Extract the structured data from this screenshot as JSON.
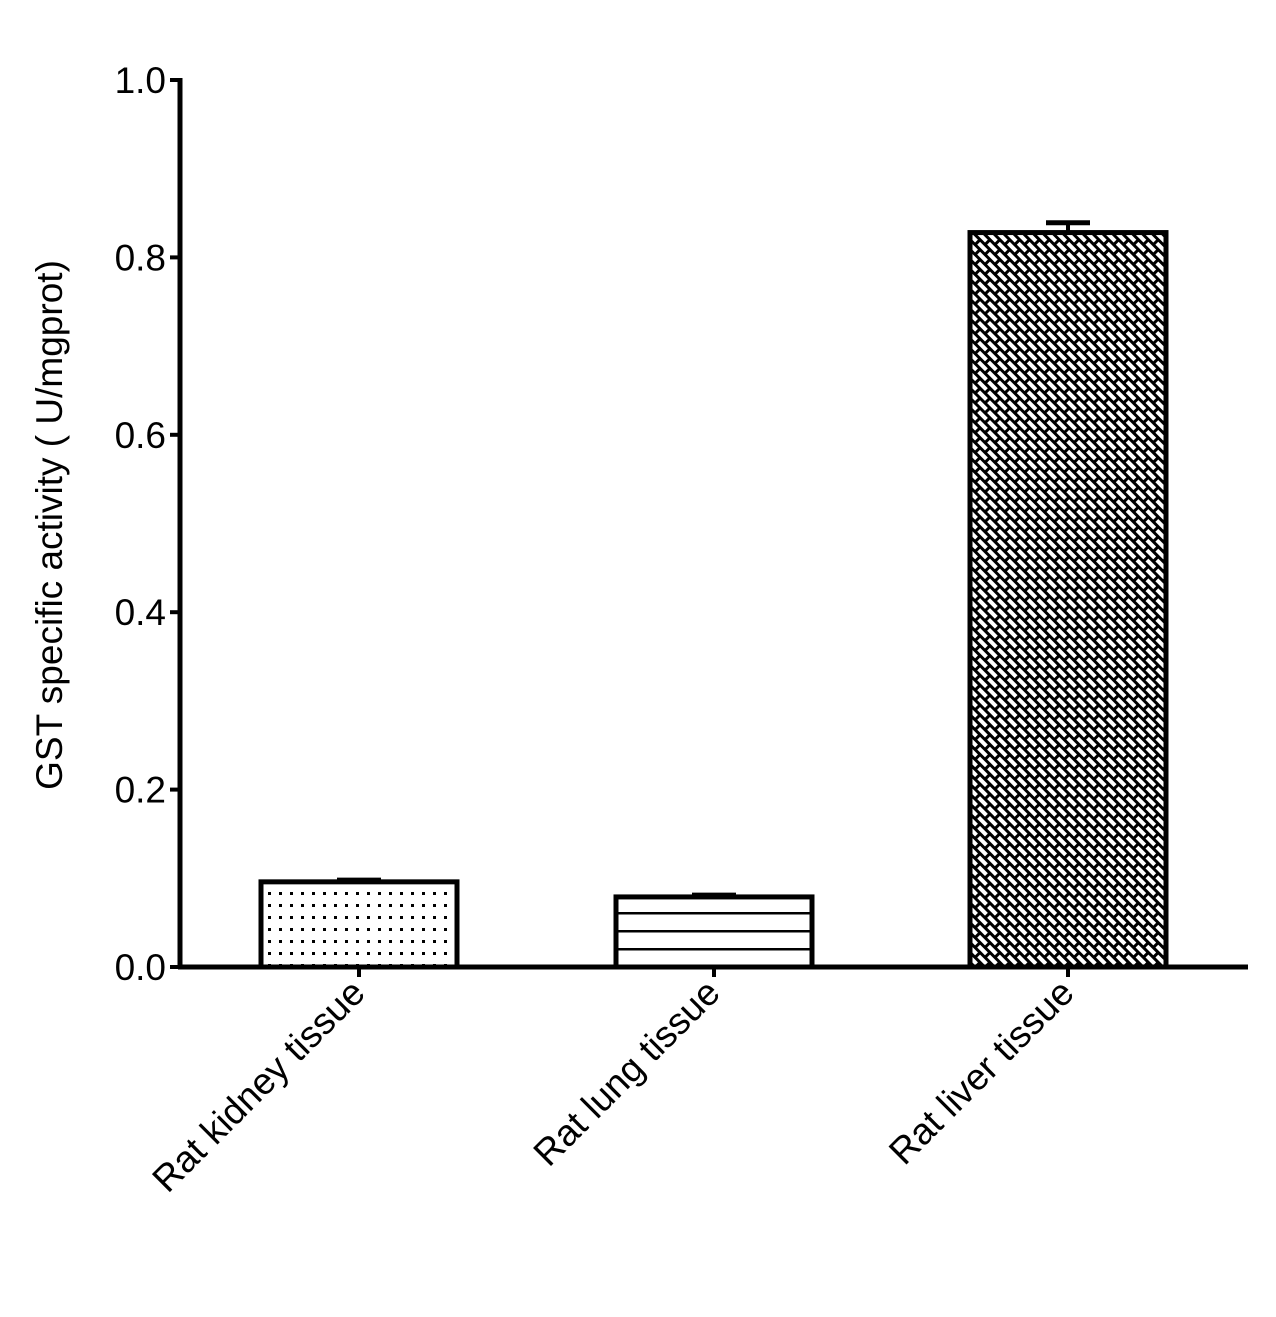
{
  "chart_data": {
    "type": "bar",
    "title": "",
    "xlabel": "",
    "ylabel": "GST specific activity ( U/mgprot)",
    "ylim": [
      0,
      1.0
    ],
    "yticks": [
      "0.0",
      "0.2",
      "0.4",
      "0.6",
      "0.8",
      "1.0"
    ],
    "grid": false,
    "legend": null,
    "categories": [
      "Rat kidney tissue",
      "Rat lung tissue",
      "Rat liver tissue"
    ],
    "values": [
      0.096,
      0.079,
      0.828
    ],
    "errors": [
      0.002,
      0.002,
      0.011
    ],
    "patterns": [
      "dots",
      "horizontal-lines",
      "crosshatch"
    ]
  },
  "axis": {
    "ylabel": "GST specific activity ( U/mgprot)",
    "yticks": [
      "0.0",
      "0.2",
      "0.4",
      "0.6",
      "0.8",
      "1.0"
    ]
  },
  "categories": [
    "Rat kidney tissue",
    "Rat lung tissue",
    "Rat liver tissue"
  ]
}
